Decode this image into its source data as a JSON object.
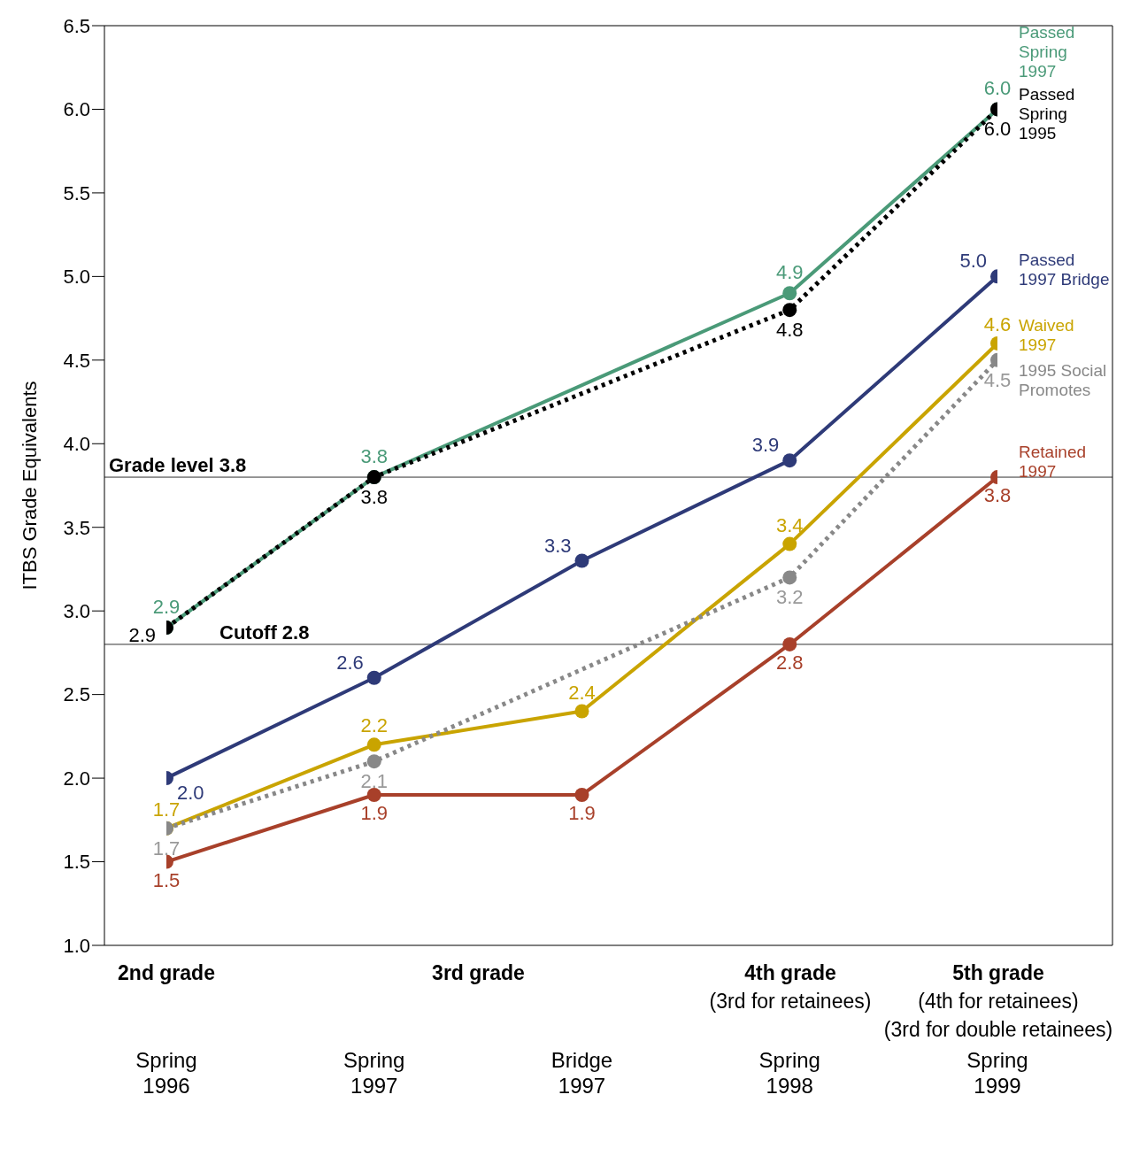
{
  "chart_data": {
    "type": "line",
    "ylabel": "ITBS Grade Equivalents",
    "categories": [
      "Spring 1996",
      "Spring 1997",
      "Bridge 1997",
      "Spring 1998",
      "Spring 1999"
    ],
    "series": [
      {
        "name": "Passed\nSpring\n1997",
        "color": "#4a9a78",
        "values": [
          2.9,
          3.8,
          null,
          4.9,
          6.0
        ],
        "value_labels": [
          "2.9",
          "3.8",
          null,
          "4.9",
          "6.0"
        ]
      },
      {
        "name": "Passed\nSpring\n1995",
        "color": "#000000",
        "line_style": "dotted",
        "values": [
          2.9,
          3.8,
          null,
          4.8,
          6.0
        ],
        "value_labels": [
          "2.9",
          "3.8",
          null,
          "4.8",
          "6.0"
        ]
      },
      {
        "name": "Passed\n1997 Bridge",
        "color": "#2e3a78",
        "values": [
          2.0,
          2.6,
          3.3,
          3.9,
          5.0
        ],
        "value_labels": [
          "2.0",
          "2.6",
          "3.3",
          "3.9",
          "5.0"
        ]
      },
      {
        "name": "Waived\n1997",
        "color": "#c9a400",
        "values": [
          1.7,
          2.2,
          2.4,
          3.4,
          4.6
        ],
        "value_labels": [
          "1.7",
          "2.2",
          "2.4",
          "3.4",
          "4.6"
        ]
      },
      {
        "name": "1995 Social\nPromotes",
        "color": "#888888",
        "line_style": "dotted",
        "values": [
          1.7,
          2.1,
          null,
          3.2,
          4.5
        ],
        "value_labels": [
          "1.7",
          "2.1",
          null,
          "3.2",
          "4.5"
        ]
      },
      {
        "name": "Retained\n1997",
        "color": "#a8402a",
        "values": [
          1.5,
          1.9,
          1.9,
          2.8,
          3.8
        ],
        "value_labels": [
          "1.5",
          "1.9",
          "1.9",
          "2.8",
          "3.8"
        ]
      }
    ],
    "ylim": [
      1.0,
      6.5
    ],
    "yticks": [
      {
        "value": 1.0,
        "label": "1.0"
      },
      {
        "value": 1.5,
        "label": "1.5"
      },
      {
        "value": 2.0,
        "label": "2.0"
      },
      {
        "value": 2.5,
        "label": "2.5"
      },
      {
        "value": 3.0,
        "label": "3.0"
      },
      {
        "value": 3.5,
        "label": "3.5"
      },
      {
        "value": 4.0,
        "label": "4.0"
      },
      {
        "value": 4.5,
        "label": "4.5"
      },
      {
        "value": 5.0,
        "label": "5.0"
      },
      {
        "value": 5.5,
        "label": "5.5"
      },
      {
        "value": 6.0,
        "label": "6.0"
      },
      {
        "value": 6.5,
        "label": "6.5"
      }
    ],
    "ref_lines": [
      {
        "axis": "y",
        "value": 3.8,
        "label": "Grade level 3.8",
        "color": "#333333"
      },
      {
        "axis": "y",
        "value": 2.8,
        "label": "Cutoff 2.8",
        "color": "#333333"
      }
    ],
    "annotations": [
      "2nd grade",
      "3rd grade",
      "4th grade",
      "(3rd for retainees)",
      "5th grade",
      "(4th for retainees)",
      "(3rd for double retainees)"
    ],
    "marker": "circle",
    "line_style": "solid",
    "grid": false
  }
}
